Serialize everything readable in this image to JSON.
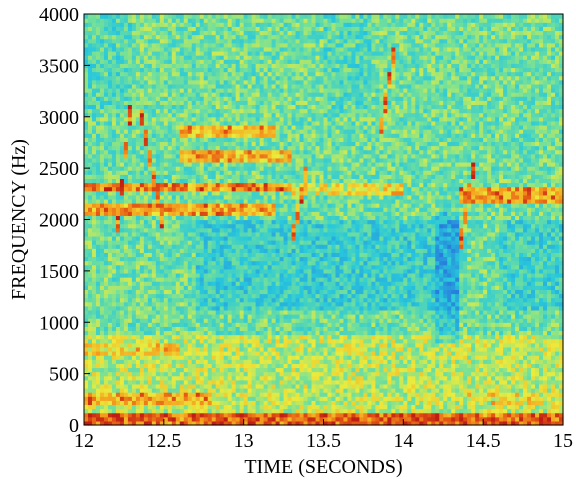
{
  "chart_data": {
    "type": "heatmap",
    "title": "",
    "xlabel": "TIME (SECONDS)",
    "ylabel": "FREQUENCY (Hz)",
    "xlim": [
      12,
      15
    ],
    "ylim": [
      0,
      4000
    ],
    "xticks": [
      12,
      12.5,
      13,
      13.5,
      14,
      14.5,
      15
    ],
    "xtick_labels": [
      "12",
      "12.5",
      "13",
      "13.5",
      "14",
      "14.5",
      "15"
    ],
    "yticks": [
      0,
      500,
      1000,
      1500,
      2000,
      2500,
      3000,
      3500,
      4000
    ],
    "ytick_labels": [
      "0",
      "500",
      "1000",
      "1500",
      "2000",
      "2500",
      "3000",
      "3500",
      "4000"
    ],
    "colormap": "jet",
    "colors": {
      "background_low": "#3fd4c8",
      "mid": "#e8e836",
      "high": "#e07010",
      "peak": "#cc2a1a"
    },
    "grid": false,
    "legend": "none",
    "features": [
      {
        "kind": "band",
        "t": [
          12.0,
          15.0
        ],
        "f": [
          0,
          120
        ],
        "level": 0.95
      },
      {
        "kind": "band",
        "t": [
          12.0,
          12.8
        ],
        "f": [
          200,
          320
        ],
        "level": 0.85
      },
      {
        "kind": "band",
        "t": [
          12.0,
          12.6
        ],
        "f": [
          700,
          800
        ],
        "level": 0.75
      },
      {
        "kind": "band",
        "t": [
          12.0,
          13.2
        ],
        "f": [
          2050,
          2150
        ],
        "level": 0.85
      },
      {
        "kind": "band",
        "t": [
          12.0,
          13.3
        ],
        "f": [
          2270,
          2370
        ],
        "level": 0.88
      },
      {
        "kind": "band",
        "t": [
          12.6,
          13.3
        ],
        "f": [
          2580,
          2680
        ],
        "level": 0.8
      },
      {
        "kind": "band",
        "t": [
          12.6,
          13.2
        ],
        "f": [
          2800,
          2900
        ],
        "level": 0.82
      },
      {
        "kind": "band",
        "t": [
          14.35,
          15.0
        ],
        "f": [
          2180,
          2300
        ],
        "level": 0.85
      },
      {
        "kind": "band",
        "t": [
          13.3,
          14.0
        ],
        "f": [
          2250,
          2350
        ],
        "level": 0.7
      },
      {
        "kind": "band",
        "t": [
          14.4,
          15.0
        ],
        "f": [
          200,
          300
        ],
        "level": 0.7
      },
      {
        "kind": "sweep",
        "t": [
          12.2,
          12.3
        ],
        "f": [
          1800,
          3200
        ],
        "level": 0.95
      },
      {
        "kind": "sweep",
        "t": [
          12.35,
          12.5
        ],
        "f": [
          3100,
          1900
        ],
        "level": 0.9
      },
      {
        "kind": "sweep",
        "t": [
          13.3,
          13.4
        ],
        "f": [
          1800,
          2500
        ],
        "level": 0.9
      },
      {
        "kind": "sweep",
        "t": [
          13.85,
          13.95
        ],
        "f": [
          2800,
          3700
        ],
        "level": 0.88
      },
      {
        "kind": "sweep",
        "t": [
          14.35,
          14.45
        ],
        "f": [
          1700,
          2600
        ],
        "level": 0.95
      }
    ]
  }
}
